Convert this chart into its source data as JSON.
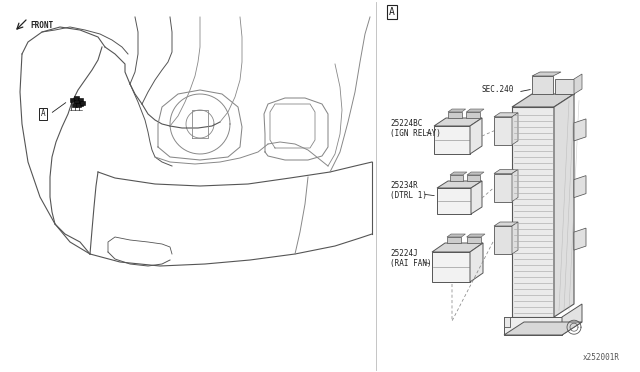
{
  "bg_color": "#ffffff",
  "line_color": "#555555",
  "dark_line": "#222222",
  "light_line": "#888888",
  "fig_width": 6.4,
  "fig_height": 3.72,
  "dpi": 100,
  "front_arrow_label": "FRONT",
  "label_A_box": "A",
  "sec240_label": "SEC.240",
  "relay1_code": "25224BC",
  "relay1_name": "(IGN RELAY)",
  "relay2_code": "25234R",
  "relay2_name": "(DTRL 1)",
  "relay3_code": "25224J",
  "relay3_name": "(RAI FAN)",
  "watermark": "x252001R"
}
